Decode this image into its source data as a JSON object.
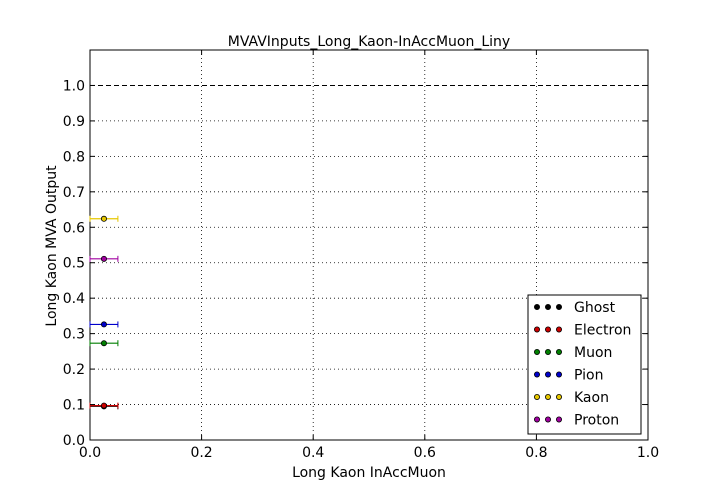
{
  "chart_data": {
    "type": "scatter",
    "title": "MVAVInputs_Long_Kaon-InAccMuon_Liny",
    "xlabel": "Long Kaon InAccMuon",
    "ylabel": "Long Kaon MVA Output",
    "xlim": [
      0.0,
      1.0
    ],
    "ylim": [
      0.0,
      1.1
    ],
    "xticks": [
      "0.0",
      "0.2",
      "0.4",
      "0.6",
      "0.8",
      "1.0"
    ],
    "yticks": [
      "0.0",
      "0.1",
      "0.2",
      "0.3",
      "0.4",
      "0.5",
      "0.6",
      "0.7",
      "0.8",
      "0.9",
      "1.0"
    ],
    "grid": true,
    "legend_position": "bottom-right",
    "reference_line": {
      "y": 1.0,
      "style": "dashed",
      "color": "#000000"
    },
    "series": [
      {
        "name": "Ghost",
        "color": "#000000",
        "points": [
          {
            "x": 0.025,
            "y": 0.095,
            "xerr": 0.025
          }
        ]
      },
      {
        "name": "Electron",
        "color": "#cc0000",
        "points": [
          {
            "x": 0.025,
            "y": 0.097,
            "xerr": 0.025
          }
        ]
      },
      {
        "name": "Muon",
        "color": "#007f00",
        "points": [
          {
            "x": 0.025,
            "y": 0.273,
            "xerr": 0.025
          }
        ]
      },
      {
        "name": "Pion",
        "color": "#0000cc",
        "points": [
          {
            "x": 0.025,
            "y": 0.326,
            "xerr": 0.025
          }
        ]
      },
      {
        "name": "Kaon",
        "color": "#e6c700",
        "points": [
          {
            "x": 0.025,
            "y": 0.624,
            "xerr": 0.025
          }
        ]
      },
      {
        "name": "Proton",
        "color": "#a000a0",
        "points": [
          {
            "x": 0.025,
            "y": 0.511,
            "xerr": 0.025
          }
        ]
      }
    ]
  }
}
